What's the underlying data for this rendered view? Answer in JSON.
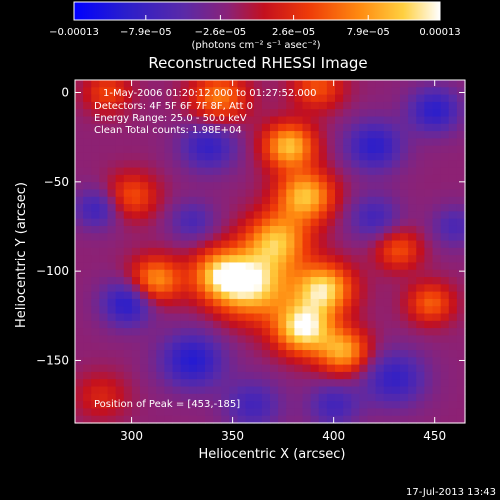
{
  "chart_data": {
    "type": "heatmap",
    "title": "Reconstructed RHESSI Image",
    "xlabel": "Heliocentric X (arcsec)",
    "ylabel": "Heliocentric Y (arcsec)",
    "xlim": [
      272,
      465
    ],
    "ylim": [
      -185,
      7
    ],
    "x_ticks": [
      "300",
      "350",
      "400",
      "450"
    ],
    "x_tick_values": [
      300,
      350,
      400,
      450
    ],
    "y_ticks": [
      "0",
      "−50",
      "−100",
      "−150"
    ],
    "y_tick_values": [
      0,
      -50,
      -100,
      -150
    ],
    "colorbar": {
      "ticks": [
        "−0.00013",
        "−7.9e−05",
        "−2.6e−05",
        "2.6e−05",
        "7.9e−05",
        "0.00013"
      ],
      "tick_values": [
        -0.00013,
        -7.9e-05,
        -2.6e-05,
        2.6e-05,
        7.9e-05,
        0.00013
      ],
      "unit_label": "(photons cm⁻² s⁻¹ asec⁻²)",
      "range": [
        -0.00013,
        0.00013
      ]
    },
    "annotations": {
      "time": "1-May-2006 01:20:12.000 to 01:27:52.000",
      "detectors": "Detectors: 4F 5F 6F 7F 8F, Att 0",
      "energy": "Energy Range: 25.0 - 50.0 keV",
      "clean": "Clean    Total counts: 1.98E+04",
      "peak": "Position of Peak = [453,-185]"
    },
    "footer_date": "17-Jul-2013 13:43",
    "peak_position": [
      453,
      -185
    ],
    "grid": false,
    "grid_resolution": [
      48,
      47
    ],
    "image_sources": [
      {
        "x": 378,
        "y": -30,
        "amp": 0.9,
        "sigma": 9
      },
      {
        "x": 386,
        "y": -58,
        "amp": 0.9,
        "sigma": 10
      },
      {
        "x": 372,
        "y": -83,
        "amp": 0.85,
        "sigma": 11
      },
      {
        "x": 360,
        "y": -108,
        "amp": 1.0,
        "sigma": 13
      },
      {
        "x": 344,
        "y": -102,
        "amp": 0.8,
        "sigma": 10
      },
      {
        "x": 312,
        "y": -105,
        "amp": 0.75,
        "sigma": 9
      },
      {
        "x": 395,
        "y": -110,
        "amp": 1.0,
        "sigma": 10
      },
      {
        "x": 385,
        "y": -132,
        "amp": 1.1,
        "sigma": 10
      },
      {
        "x": 405,
        "y": -145,
        "amp": 0.8,
        "sigma": 9
      },
      {
        "x": 448,
        "y": -118,
        "amp": 0.55,
        "sigma": 8
      },
      {
        "x": 432,
        "y": -88,
        "amp": 0.5,
        "sigma": 8
      },
      {
        "x": 343,
        "y": -3,
        "amp": 0.65,
        "sigma": 10
      },
      {
        "x": 288,
        "y": 0,
        "amp": 0.45,
        "sigma": 8
      },
      {
        "x": 300,
        "y": -58,
        "amp": 0.5,
        "sigma": 9
      },
      {
        "x": 392,
        "y": 3,
        "amp": 0.5,
        "sigma": 9
      },
      {
        "x": 283,
        "y": -65,
        "amp": -0.45,
        "sigma": 8
      },
      {
        "x": 298,
        "y": -118,
        "amp": -0.6,
        "sigma": 9
      },
      {
        "x": 330,
        "y": -150,
        "amp": -0.6,
        "sigma": 11
      },
      {
        "x": 338,
        "y": -30,
        "amp": -0.5,
        "sigma": 10
      },
      {
        "x": 420,
        "y": -30,
        "amp": -0.55,
        "sigma": 10
      },
      {
        "x": 450,
        "y": -10,
        "amp": -0.55,
        "sigma": 9
      },
      {
        "x": 430,
        "y": -160,
        "amp": -0.5,
        "sigma": 11
      },
      {
        "x": 360,
        "y": -175,
        "amp": -0.4,
        "sigma": 10
      },
      {
        "x": 400,
        "y": -175,
        "amp": -0.4,
        "sigma": 9
      },
      {
        "x": 460,
        "y": -75,
        "amp": -0.35,
        "sigma": 8
      },
      {
        "x": 330,
        "y": -72,
        "amp": -0.35,
        "sigma": 8
      },
      {
        "x": 420,
        "y": -70,
        "amp": -0.4,
        "sigma": 9
      },
      {
        "x": 285,
        "y": -170,
        "amp": 0.3,
        "sigma": 9
      }
    ],
    "image_offset": -0.15
  }
}
